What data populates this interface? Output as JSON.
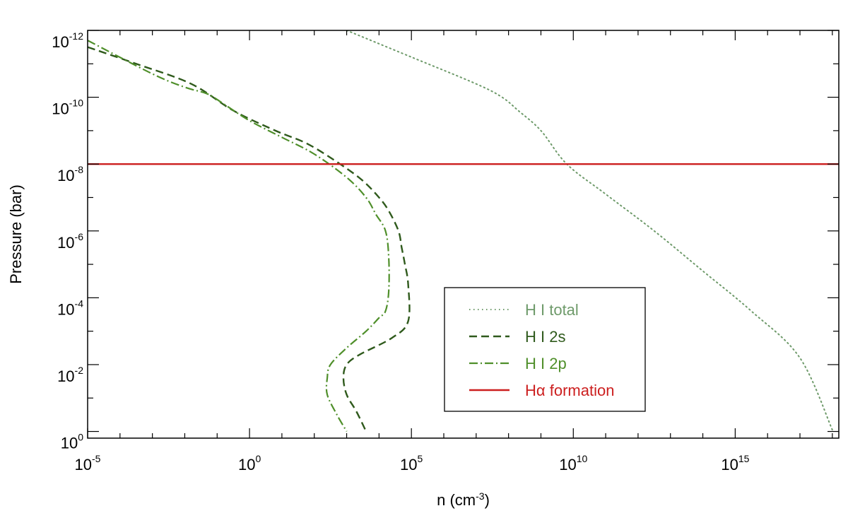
{
  "chart_data": {
    "type": "line",
    "xscale": "log",
    "yscale": "log",
    "y_inverted": true,
    "xlabel": {
      "base": "n (cm",
      "sup": "-3",
      "close": ")"
    },
    "ylabel": "Pressure (bar)",
    "xlim_exp": [
      -5,
      18.2
    ],
    "ylim_exp": [
      -12,
      0.2
    ],
    "xticks": [
      {
        "exp": -5,
        "label_base": "10",
        "label_sup": "-5"
      },
      {
        "exp": 0,
        "label_base": "10",
        "label_sup": "0"
      },
      {
        "exp": 5,
        "label_base": "10",
        "label_sup": "5"
      },
      {
        "exp": 10,
        "label_base": "10",
        "label_sup": "10"
      },
      {
        "exp": 15,
        "label_base": "10",
        "label_sup": "15"
      }
    ],
    "yticks": [
      {
        "exp": -12,
        "label_base": "10",
        "label_sup": "-12"
      },
      {
        "exp": -10,
        "label_base": "10",
        "label_sup": "-10"
      },
      {
        "exp": -8,
        "label_base": "10",
        "label_sup": "-8"
      },
      {
        "exp": -6,
        "label_base": "10",
        "label_sup": "-6"
      },
      {
        "exp": -4,
        "label_base": "10",
        "label_sup": "-4"
      },
      {
        "exp": -2,
        "label_base": "10",
        "label_sup": "-2"
      },
      {
        "exp": 0,
        "label_base": "10",
        "label_sup": "0"
      }
    ],
    "series": [
      {
        "name": "H I total",
        "legend_label": "H I total",
        "color": "#6e9a6a",
        "style": "dotted",
        "x_log": [
          3.0,
          5.0,
          7.0,
          7.8,
          8.3,
          9.0,
          9.8,
          11.0,
          12.5,
          14.0,
          15.5,
          17.0,
          18.0
        ],
        "y_log": [
          -12.0,
          -11.2,
          -10.4,
          -10.0,
          -9.6,
          -9.0,
          -8.0,
          -7.1,
          -6.0,
          -4.8,
          -3.6,
          -2.2,
          -0.05
        ]
      },
      {
        "name": "H I 2s",
        "legend_label": "H I 2s",
        "color": "#2f5a1c",
        "style": "dashed",
        "x_log": [
          -5.0,
          -3.5,
          -1.8,
          -0.5,
          0.8,
          1.8,
          2.8,
          3.5,
          4.0,
          4.3,
          4.6,
          4.7,
          4.8,
          4.9,
          4.9,
          4.4,
          3.4,
          3.0,
          2.9,
          3.0,
          3.3,
          3.6
        ],
        "y_log": [
          -11.5,
          -11.0,
          -10.4,
          -9.6,
          -9.0,
          -8.6,
          -8.0,
          -7.5,
          -7.0,
          -6.6,
          -6.0,
          -5.5,
          -5.0,
          -4.4,
          -3.3,
          -2.8,
          -2.3,
          -2.0,
          -1.6,
          -1.1,
          -0.6,
          0.0
        ]
      },
      {
        "name": "H I 2p",
        "legend_label": "H I 2p",
        "color": "#4f8f2a",
        "style": "dashdot",
        "x_log": [
          -5.0,
          -3.0,
          -2.0,
          -1.3,
          -0.8,
          0.0,
          1.0,
          2.0,
          3.0,
          3.6,
          3.9,
          4.2,
          4.3,
          4.3,
          4.2,
          4.0,
          3.6,
          3.0,
          2.5,
          2.4,
          2.4,
          2.7,
          3.0
        ],
        "y_log": [
          -11.7,
          -10.7,
          -10.3,
          -10.1,
          -9.8,
          -9.3,
          -8.8,
          -8.3,
          -7.6,
          -7.0,
          -6.5,
          -6.0,
          -5.2,
          -4.2,
          -3.6,
          -3.4,
          -3.0,
          -2.5,
          -2.0,
          -1.6,
          -1.1,
          -0.5,
          0.0
        ]
      },
      {
        "name": "Hα formation",
        "legend_label": "Hα formation",
        "color": "#cc1f1f",
        "style": "solid",
        "x_log": [
          -5.0,
          18.2
        ],
        "y_log": [
          -8.0,
          -8.0
        ]
      }
    ],
    "legend_position": "bottom-center"
  }
}
